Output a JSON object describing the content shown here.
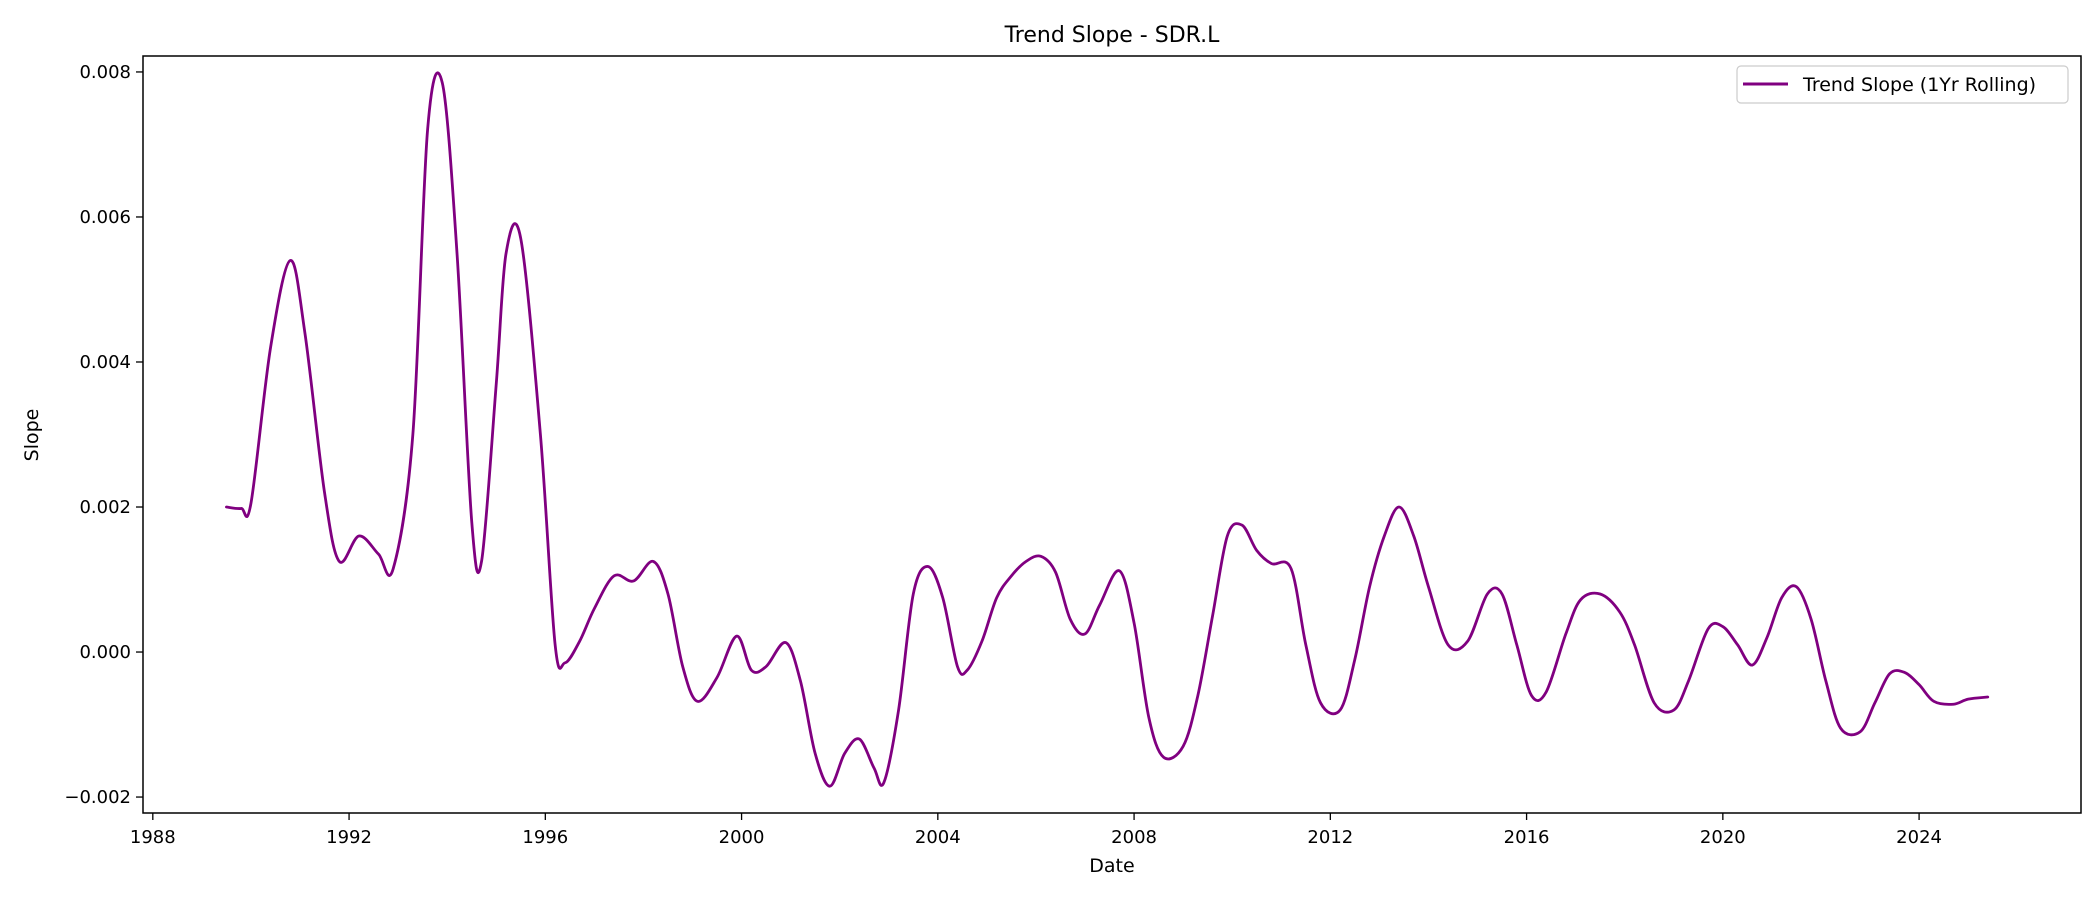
{
  "chart_data": {
    "type": "line",
    "title": "Trend Slope - SDR.L",
    "xlabel": "Date",
    "ylabel": "Slope",
    "xlim": [
      1987.8,
      2027.3
    ],
    "ylim": [
      -0.00222,
      0.00822
    ],
    "x_ticks": [
      1988,
      1992,
      1996,
      2000,
      2004,
      2008,
      2012,
      2016,
      2020,
      2024
    ],
    "x_tick_labels": [
      "1988",
      "1992",
      "1996",
      "2000",
      "2004",
      "2008",
      "2012",
      "2016",
      "2020",
      "2024"
    ],
    "y_ticks": [
      -0.002,
      0.0,
      0.002,
      0.004,
      0.006,
      0.008
    ],
    "y_tick_labels": [
      "−0.002",
      "0.000",
      "0.002",
      "0.004",
      "0.006",
      "0.008"
    ],
    "grid": false,
    "legend_position": "top-right",
    "series": [
      {
        "name": "Trend Slope (1Yr Rolling)",
        "color": "#800080",
        "x": [
          1989.5,
          1989.8,
          1990.0,
          1990.4,
          1990.8,
          1991.1,
          1991.5,
          1991.8,
          1992.2,
          1992.6,
          1992.9,
          1993.3,
          1993.6,
          1993.9,
          1994.2,
          1994.5,
          1994.7,
          1995.0,
          1995.2,
          1995.5,
          1995.9,
          1996.2,
          1996.4,
          1996.7,
          1997.0,
          1997.4,
          1997.8,
          1998.2,
          1998.5,
          1998.8,
          1999.1,
          1999.5,
          1999.9,
          2000.2,
          2000.5,
          2000.9,
          2001.2,
          2001.5,
          2001.8,
          2002.1,
          2002.4,
          2002.7,
          2002.9,
          2003.2,
          2003.5,
          2003.8,
          2004.1,
          2004.4,
          2004.6,
          2004.9,
          2005.2,
          2005.5,
          2005.8,
          2006.1,
          2006.4,
          2006.7,
          2007.0,
          2007.3,
          2007.7,
          2008.0,
          2008.3,
          2008.6,
          2009.0,
          2009.3,
          2009.6,
          2009.9,
          2010.2,
          2010.5,
          2010.8,
          2011.2,
          2011.5,
          2011.8,
          2012.2,
          2012.5,
          2012.8,
          2013.1,
          2013.4,
          2013.7,
          2014.0,
          2014.4,
          2014.8,
          2015.2,
          2015.5,
          2015.8,
          2016.1,
          2016.4,
          2016.8,
          2017.1,
          2017.5,
          2017.9,
          2018.2,
          2018.6,
          2019.0,
          2019.3,
          2019.7,
          2020.0,
          2020.3,
          2020.6,
          2020.9,
          2021.2,
          2021.5,
          2021.8,
          2022.1,
          2022.4,
          2022.8,
          2023.1,
          2023.4,
          2023.7,
          2024.0,
          2024.3,
          2024.7,
          2025.0,
          2025.4
        ],
        "y": [
          0.002,
          0.00198,
          0.00205,
          0.0042,
          0.0054,
          0.0044,
          0.0022,
          0.00125,
          0.0016,
          0.00135,
          0.00115,
          0.003,
          0.0072,
          0.00785,
          0.0055,
          0.0018,
          0.00125,
          0.0037,
          0.0055,
          0.0057,
          0.003,
          0.0001,
          -0.00015,
          0.00015,
          0.0006,
          0.00105,
          0.00098,
          0.00125,
          0.0008,
          -0.0002,
          -0.00068,
          -0.00035,
          0.00022,
          -0.00025,
          -0.0002,
          0.00013,
          -0.0004,
          -0.0014,
          -0.00185,
          -0.0014,
          -0.0012,
          -0.0016,
          -0.0018,
          -0.0008,
          0.0008,
          0.00118,
          0.00075,
          -0.0002,
          -0.00025,
          0.00015,
          0.00075,
          0.00105,
          0.00125,
          0.00132,
          0.0011,
          0.00045,
          0.00025,
          0.00065,
          0.00112,
          0.0004,
          -0.0009,
          -0.00145,
          -0.0013,
          -0.0006,
          0.0005,
          0.0016,
          0.00175,
          0.0014,
          0.00122,
          0.00115,
          0.0001,
          -0.0007,
          -0.0008,
          -0.0001,
          0.0009,
          0.0016,
          0.002,
          0.0016,
          0.0009,
          0.0001,
          0.00015,
          0.0008,
          0.0008,
          0.0001,
          -0.0006,
          -0.00055,
          0.00025,
          0.00072,
          0.0008,
          0.00055,
          0.0001,
          -0.0007,
          -0.0008,
          -0.0004,
          0.00032,
          0.00035,
          0.0001,
          -0.00018,
          0.0002,
          0.00075,
          0.0009,
          0.00045,
          -0.0004,
          -0.00105,
          -0.0011,
          -0.0007,
          -0.0003,
          -0.00028,
          -0.00045,
          -0.00068,
          -0.00072,
          -0.00065,
          -0.00062
        ]
      }
    ]
  }
}
